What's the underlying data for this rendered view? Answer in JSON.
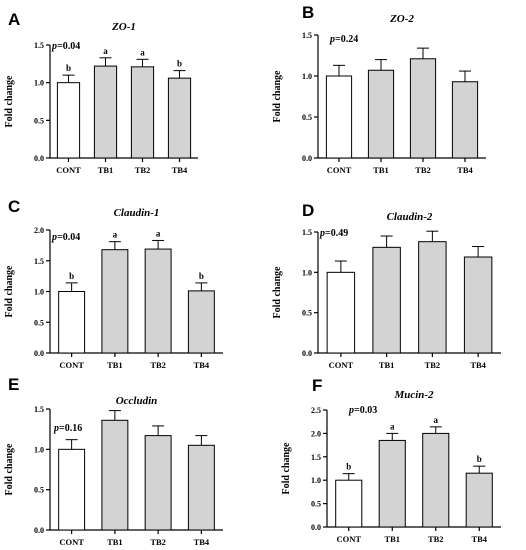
{
  "colors": {
    "control_bar": "#ffffff",
    "treatment_bar": "#d3d3d3",
    "axis": "#000000"
  },
  "chart_data": [
    {
      "type": "bar",
      "letter": "A",
      "title": "ZO-1",
      "p_label": "p",
      "p_value": "=0.04",
      "ylabel": "Fold change",
      "ylim": [
        0,
        1.5
      ],
      "yticks": [
        "0.0",
        "0.5",
        "1.0",
        "1.5"
      ],
      "categories": [
        "CONT",
        "TB1",
        "TB2",
        "TB4"
      ],
      "values": [
        1.0,
        1.22,
        1.21,
        1.06
      ],
      "errors": [
        0.1,
        0.11,
        0.1,
        0.1
      ],
      "sig": [
        "b",
        "a",
        "a",
        "b"
      ]
    },
    {
      "type": "bar",
      "letter": "B",
      "title": "ZO-2",
      "p_label": "p",
      "p_value": "=0.24",
      "ylabel": "Fold change",
      "ylim": [
        0,
        1.5
      ],
      "yticks": [
        "0.0",
        "0.5",
        "1.0",
        "1.5"
      ],
      "categories": [
        "CONT",
        "TB1",
        "TB2",
        "TB4"
      ],
      "values": [
        1.0,
        1.07,
        1.21,
        0.93
      ],
      "errors": [
        0.13,
        0.13,
        0.13,
        0.13
      ],
      "sig": [
        "",
        "",
        "",
        ""
      ]
    },
    {
      "type": "bar",
      "letter": "C",
      "title": "Claudin-1",
      "p_label": "p",
      "p_value": "=0.04",
      "ylabel": "Fold change",
      "ylim": [
        0,
        2.0
      ],
      "yticks": [
        "0.0",
        "0.5",
        "1.0",
        "1.5",
        "2.0"
      ],
      "categories": [
        "CONT",
        "TB1",
        "TB2",
        "TB4"
      ],
      "values": [
        1.0,
        1.68,
        1.69,
        1.01
      ],
      "errors": [
        0.14,
        0.13,
        0.14,
        0.13
      ],
      "sig": [
        "b",
        "a",
        "a",
        "b"
      ]
    },
    {
      "type": "bar",
      "letter": "D",
      "title": "Claudin-2",
      "p_label": "p",
      "p_value": "=0.49",
      "ylabel": "Fold change",
      "ylim": [
        0,
        1.5
      ],
      "yticks": [
        "0.0",
        "0.5",
        "1.0",
        "1.5"
      ],
      "categories": [
        "CONT",
        "TB1",
        "TB2",
        "TB4"
      ],
      "values": [
        1.0,
        1.31,
        1.38,
        1.19
      ],
      "errors": [
        0.14,
        0.14,
        0.13,
        0.13
      ],
      "sig": [
        "",
        "",
        "",
        ""
      ]
    },
    {
      "type": "bar",
      "letter": "E",
      "title": "Occludin",
      "p_label": "p",
      "p_value": "=0.16",
      "ylabel": "Fold change",
      "ylim": [
        0,
        1.5
      ],
      "yticks": [
        "0.0",
        "0.5",
        "1.0",
        "1.5"
      ],
      "categories": [
        "CONT",
        "TB1",
        "TB2",
        "TB4"
      ],
      "values": [
        1.0,
        1.36,
        1.17,
        1.05
      ],
      "errors": [
        0.12,
        0.12,
        0.12,
        0.12
      ],
      "sig": [
        "",
        "",
        "",
        ""
      ]
    },
    {
      "type": "bar",
      "letter": "F",
      "title": "Mucin-2",
      "p_label": "p",
      "p_value": "=0.03",
      "ylabel": "Fold change",
      "ylim": [
        0,
        2.5
      ],
      "yticks": [
        "0.0",
        "0.5",
        "1.0",
        "1.5",
        "2.0",
        "2.5"
      ],
      "categories": [
        "CONT",
        "TB1",
        "TB2",
        "TB4"
      ],
      "values": [
        1.0,
        1.85,
        2.0,
        1.15
      ],
      "errors": [
        0.14,
        0.15,
        0.14,
        0.15
      ],
      "sig": [
        "b",
        "a",
        "a",
        "b"
      ]
    }
  ]
}
